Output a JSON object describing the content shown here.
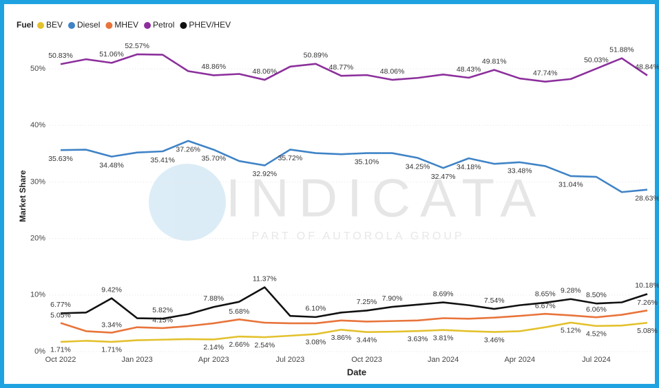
{
  "chart_data": {
    "type": "line",
    "legend_title": "Fuel",
    "xlabel": "Date",
    "ylabel": "Market Share",
    "watermark": {
      "text": "INDICATA",
      "subtext": "PART OF AUTOROLA GROUP"
    },
    "categories": [
      "Oct 2022",
      null,
      null,
      "Jan 2023",
      null,
      null,
      "Apr 2023",
      null,
      null,
      "Jul 2023",
      null,
      null,
      "Oct 2023",
      null,
      null,
      "Jan 2024",
      null,
      null,
      "Apr 2024",
      null,
      null,
      "Jul 2024",
      null,
      null
    ],
    "ylim": [
      0,
      55
    ],
    "yticks": [
      {
        "value": 0,
        "label": "0%"
      },
      {
        "value": 10,
        "label": "10%"
      },
      {
        "value": 20,
        "label": "20%"
      },
      {
        "value": 30,
        "label": "30%"
      },
      {
        "value": 40,
        "label": "40%"
      },
      {
        "value": 50,
        "label": "50%"
      }
    ],
    "grid": true,
    "legend": "top-left",
    "series": [
      {
        "name": "BEV",
        "color": "#e3c12d",
        "values": [
          1.71,
          1.9,
          1.71,
          2.0,
          2.1,
          2.2,
          2.14,
          2.66,
          2.54,
          2.8,
          3.08,
          3.86,
          3.44,
          3.5,
          3.63,
          3.81,
          3.6,
          3.46,
          3.6,
          4.3,
          5.12,
          4.52,
          4.6,
          5.08
        ],
        "value_labels": [
          "1.71%",
          null,
          "1.71%",
          null,
          null,
          null,
          "2.14%",
          "2.66%",
          "2.54%",
          null,
          "3.08%",
          "3.86%",
          "3.44%",
          null,
          "3.63%",
          "3.81%",
          null,
          "3.46%",
          null,
          null,
          "5.12%",
          "4.52%",
          null,
          "5.08%"
        ]
      },
      {
        "name": "Diesel",
        "color": "#3f83c6",
        "values": [
          35.63,
          35.7,
          34.48,
          35.2,
          35.41,
          37.26,
          35.7,
          33.7,
          32.92,
          35.72,
          35.1,
          34.9,
          35.1,
          35.1,
          34.25,
          32.47,
          34.18,
          33.2,
          33.48,
          32.8,
          31.04,
          30.9,
          28.2,
          28.63
        ],
        "value_labels": [
          "35.63%",
          null,
          "34.48%",
          null,
          "35.41%",
          "37.26%",
          "35.70%",
          null,
          "32.92%",
          "35.72%",
          null,
          null,
          "35.10%",
          null,
          "34.25%",
          "32.47%",
          "34.18%",
          null,
          "33.48%",
          null,
          "31.04%",
          null,
          null,
          "28.63%"
        ]
      },
      {
        "name": "MHEV",
        "color": "#e8743b",
        "values": [
          5.05,
          3.6,
          3.34,
          4.3,
          4.15,
          4.5,
          5.0,
          5.68,
          5.1,
          5.0,
          5.0,
          5.5,
          5.3,
          5.4,
          5.5,
          5.9,
          5.8,
          6.0,
          6.3,
          6.67,
          6.4,
          6.06,
          6.5,
          7.26
        ],
        "value_labels": [
          "5.05%",
          null,
          "3.34%",
          null,
          "4.15%",
          null,
          null,
          "5.68%",
          null,
          null,
          null,
          null,
          null,
          null,
          null,
          null,
          null,
          null,
          null,
          "6.67%",
          null,
          "6.06%",
          null,
          "7.26%"
        ]
      },
      {
        "name": "Petrol",
        "color": "#8c2f9c",
        "values": [
          50.83,
          51.7,
          51.06,
          52.57,
          52.5,
          49.6,
          48.86,
          49.1,
          48.06,
          50.4,
          50.89,
          48.77,
          48.9,
          48.06,
          48.4,
          49.0,
          48.43,
          49.81,
          48.3,
          47.74,
          48.2,
          50.03,
          51.88,
          48.84
        ],
        "value_labels": [
          "50.83%",
          null,
          "51.06%",
          "52.57%",
          null,
          null,
          "48.86%",
          null,
          "48.06%",
          null,
          "50.89%",
          "48.77%",
          null,
          "48.06%",
          null,
          null,
          "48.43%",
          "49.81%",
          null,
          "47.74%",
          null,
          "50.03%",
          "51.88%",
          "48.84%"
        ]
      },
      {
        "name": "PHEV/HEV",
        "color": "#111111",
        "values": [
          6.77,
          6.9,
          9.42,
          5.9,
          5.82,
          6.6,
          7.88,
          8.8,
          11.37,
          6.3,
          6.1,
          6.9,
          7.25,
          7.9,
          8.3,
          8.69,
          8.2,
          7.54,
          8.2,
          8.65,
          9.28,
          8.5,
          8.7,
          10.18
        ],
        "value_labels": [
          "6.77%",
          null,
          "9.42%",
          null,
          "5.82%",
          null,
          "7.88%",
          null,
          "11.37%",
          null,
          "6.10%",
          null,
          "7.25%",
          "7.90%",
          null,
          "8.69%",
          null,
          "7.54%",
          null,
          "8.65%",
          "9.28%",
          "8.50%",
          null,
          "10.18%"
        ]
      }
    ]
  }
}
